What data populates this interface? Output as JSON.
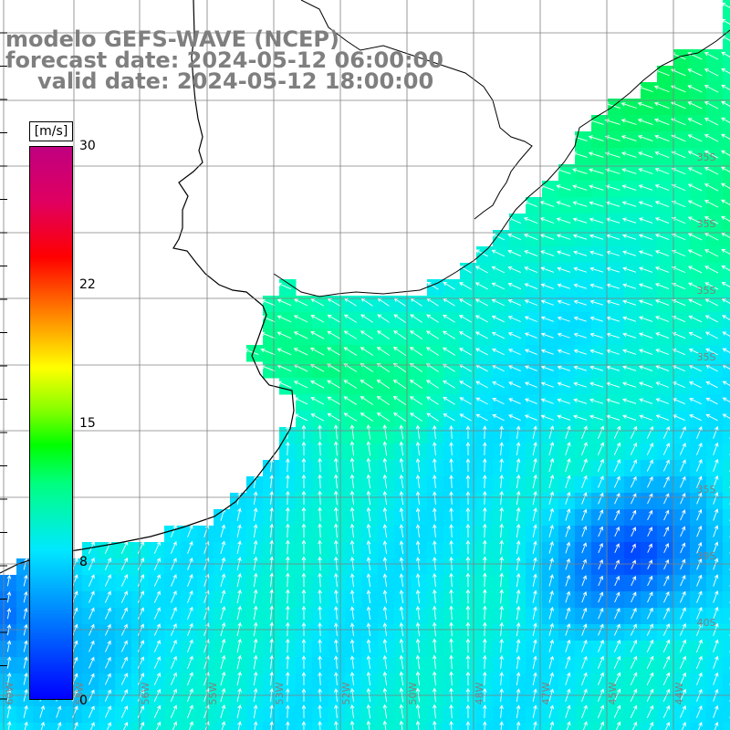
{
  "header": {
    "model": "modelo GEFS-WAVE (NCEP)",
    "forecast": "forecast date: 2024-05-12 06:00:00",
    "valid": "valid date: 2024-05-12 18:00:00"
  },
  "colorbar": {
    "unit": "[m/s]",
    "ticks": [
      "30",
      "22",
      "15",
      "8",
      "0"
    ],
    "range": [
      0,
      30
    ],
    "colors": [
      "#0000ff",
      "#0080ff",
      "#00e8ff",
      "#00ff80",
      "#00ff00",
      "#80ff00",
      "#ffff00",
      "#ff8000",
      "#ff0000",
      "#c00080"
    ]
  },
  "lat_labels": [
    "35S",
    "35S",
    "35S",
    "35S",
    "35S",
    "39S",
    "40S"
  ],
  "lon_labels": [
    "60W",
    "58W",
    "56W",
    "55W",
    "53W",
    "52W",
    "50W",
    "48W",
    "47W",
    "45W",
    "44W"
  ],
  "colors": {
    "land": "#ffffff",
    "coast": "#000000",
    "grid": "#808080",
    "header_text": "#7f7f7f",
    "arrow": "#ffffff"
  },
  "wind_field": {
    "quantity": "wind speed [m/s]",
    "arrow_direction": "predominantly from east / south-east towards the coast"
  }
}
